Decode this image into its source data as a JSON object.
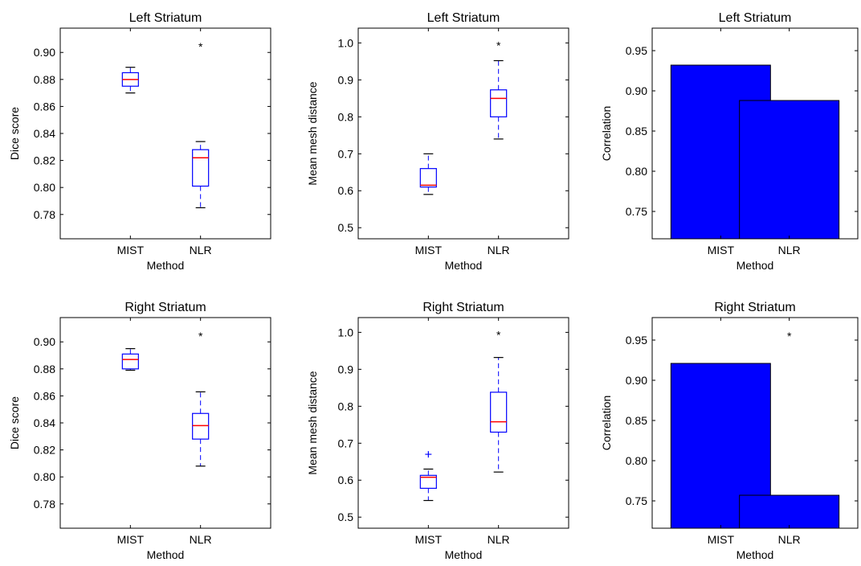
{
  "chart_data": [
    {
      "type": "box",
      "title": "Left Striatum",
      "xlabel": "Method",
      "ylabel": "Dice score",
      "categories": [
        "MIST",
        "NLR"
      ],
      "ylim": [
        0.762,
        0.918
      ],
      "yticks": [
        0.78,
        0.8,
        0.82,
        0.84,
        0.86,
        0.88,
        0.9
      ],
      "yticklabels": [
        "0.78",
        "0.80",
        "0.82",
        "0.84",
        "0.86",
        "0.88",
        "0.90"
      ],
      "boxes": [
        {
          "whislo": 0.87,
          "q1": 0.875,
          "med": 0.88,
          "q3": 0.885,
          "whishi": 0.889,
          "fliers": []
        },
        {
          "whislo": 0.785,
          "q1": 0.801,
          "med": 0.822,
          "q3": 0.828,
          "whishi": 0.834,
          "fliers": []
        }
      ],
      "annotations": [
        {
          "text": "*",
          "category": "NLR",
          "y": 0.906
        }
      ]
    },
    {
      "type": "box",
      "title": "Left Striatum",
      "xlabel": "Method",
      "ylabel": "Mean mesh distance",
      "categories": [
        "MIST",
        "NLR"
      ],
      "ylim": [
        0.47,
        1.04
      ],
      "yticks": [
        0.5,
        0.6,
        0.7,
        0.8,
        0.9,
        1.0
      ],
      "yticklabels": [
        "0.5",
        "0.6",
        "0.7",
        "0.8",
        "0.9",
        "1.0"
      ],
      "boxes": [
        {
          "whislo": 0.59,
          "q1": 0.61,
          "med": 0.615,
          "q3": 0.66,
          "whishi": 0.7,
          "fliers": []
        },
        {
          "whislo": 0.74,
          "q1": 0.8,
          "med": 0.85,
          "q3": 0.873,
          "whishi": 0.952,
          "fliers": []
        }
      ],
      "annotations": [
        {
          "text": "*",
          "category": "NLR",
          "y": 1.0
        }
      ]
    },
    {
      "type": "bar",
      "title": "Left Striatum",
      "xlabel": "Method",
      "ylabel": "Correlation",
      "categories": [
        "MIST",
        "NLR"
      ],
      "values": [
        0.932,
        0.888
      ],
      "ylim": [
        0.716,
        0.978
      ],
      "yticks": [
        0.75,
        0.8,
        0.85,
        0.9,
        0.95
      ],
      "yticklabels": [
        "0.75",
        "0.80",
        "0.85",
        "0.90",
        "0.95"
      ],
      "annotations": []
    },
    {
      "type": "box",
      "title": "Right Striatum",
      "xlabel": "Method",
      "ylabel": "Dice score",
      "categories": [
        "MIST",
        "NLR"
      ],
      "ylim": [
        0.762,
        0.918
      ],
      "yticks": [
        0.78,
        0.8,
        0.82,
        0.84,
        0.86,
        0.88,
        0.9
      ],
      "yticklabels": [
        "0.78",
        "0.80",
        "0.82",
        "0.84",
        "0.86",
        "0.88",
        "0.90"
      ],
      "boxes": [
        {
          "whislo": 0.879,
          "q1": 0.88,
          "med": 0.887,
          "q3": 0.891,
          "whishi": 0.895,
          "fliers": []
        },
        {
          "whislo": 0.808,
          "q1": 0.828,
          "med": 0.838,
          "q3": 0.847,
          "whishi": 0.863,
          "fliers": []
        }
      ],
      "annotations": [
        {
          "text": "*",
          "category": "NLR",
          "y": 0.906
        }
      ]
    },
    {
      "type": "box",
      "title": "Right Striatum",
      "xlabel": "Method",
      "ylabel": "Mean mesh distance",
      "categories": [
        "MIST",
        "NLR"
      ],
      "ylim": [
        0.47,
        1.04
      ],
      "yticks": [
        0.5,
        0.6,
        0.7,
        0.8,
        0.9,
        1.0
      ],
      "yticklabels": [
        "0.5",
        "0.6",
        "0.7",
        "0.8",
        "0.9",
        "1.0"
      ],
      "boxes": [
        {
          "whislo": 0.545,
          "q1": 0.578,
          "med": 0.608,
          "q3": 0.613,
          "whishi": 0.63,
          "fliers": [
            0.67
          ]
        },
        {
          "whislo": 0.622,
          "q1": 0.73,
          "med": 0.758,
          "q3": 0.838,
          "whishi": 0.932,
          "fliers": []
        }
      ],
      "annotations": [
        {
          "text": "*",
          "category": "NLR",
          "y": 1.0
        }
      ]
    },
    {
      "type": "bar",
      "title": "Right Striatum",
      "xlabel": "Method",
      "ylabel": "Correlation",
      "categories": [
        "MIST",
        "NLR"
      ],
      "values": [
        0.921,
        0.757
      ],
      "ylim": [
        0.716,
        0.978
      ],
      "yticks": [
        0.75,
        0.8,
        0.85,
        0.9,
        0.95
      ],
      "yticklabels": [
        "0.75",
        "0.80",
        "0.85",
        "0.90",
        "0.95"
      ],
      "annotations": [
        {
          "text": "*",
          "category": "NLR",
          "y": 0.958
        }
      ]
    }
  ],
  "colors": {
    "box": "#0000ff",
    "median": "#ff0000",
    "bar_fill": "#0000ff",
    "bar_edge": "#000000"
  }
}
